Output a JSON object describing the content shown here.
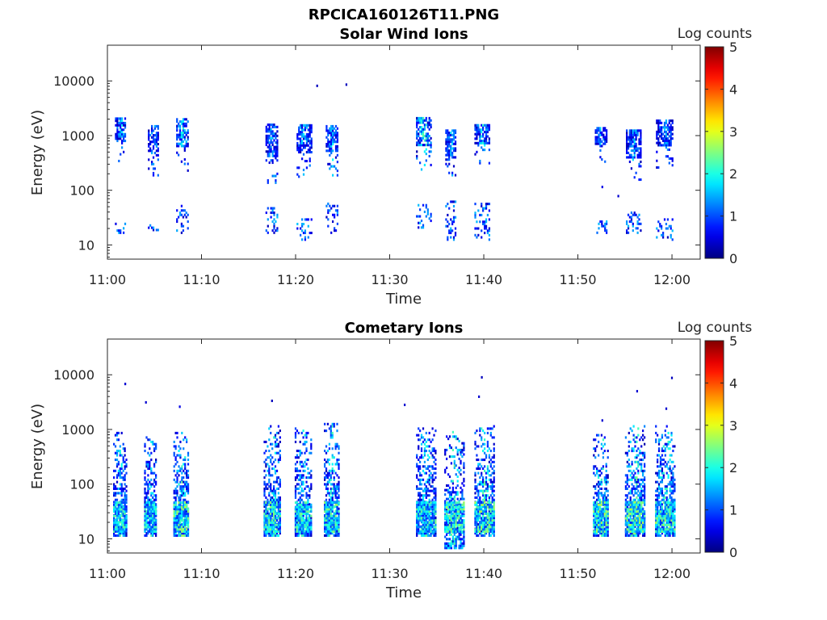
{
  "figure": {
    "title": "RPCICA160126T11.PNG"
  },
  "colorbar": {
    "label": "Log counts",
    "ticks": [
      0,
      1,
      2,
      3,
      4,
      5
    ],
    "range": [
      0,
      5
    ],
    "colormap": "jet"
  },
  "chart_data": [
    {
      "type": "heatmap",
      "title": "Solar Wind Ions",
      "xlabel": "Time",
      "ylabel": "Energy (eV)",
      "x_tick_labels": [
        "11:00",
        "11:10",
        "11:20",
        "11:30",
        "11:40",
        "11:50",
        "12:00"
      ],
      "x_tick_minutes": [
        0,
        10,
        20,
        30,
        40,
        50,
        60
      ],
      "xlim_minutes": [
        0,
        63
      ],
      "y_scale": "log",
      "y_tick_labels": [
        "10",
        "100",
        "1000",
        "10000"
      ],
      "y_tick_values": [
        10,
        100,
        1000,
        10000
      ],
      "ylim": [
        5.5,
        45000
      ],
      "color_range": [
        0,
        5
      ],
      "bursts": [
        {
          "t_min": 0.8,
          "t_max": 1.9,
          "e_main": [
            300,
            2000
          ],
          "e_low": [
            16,
            27
          ],
          "peak_log_counts": 2.2
        },
        {
          "t_min": 4.3,
          "t_max": 5.4,
          "e_main": [
            180,
            1500
          ],
          "e_low": [
            18,
            22
          ],
          "peak_log_counts": 2.0
        },
        {
          "t_min": 7.3,
          "t_max": 8.6,
          "e_main": [
            200,
            2000
          ],
          "e_low": [
            16,
            50
          ],
          "peak_log_counts": 2.3
        },
        {
          "t_min": 16.8,
          "t_max": 18.0,
          "e_main": [
            120,
            1600
          ],
          "e_low": [
            16,
            45
          ],
          "peak_log_counts": 2.0
        },
        {
          "t_min": 20.1,
          "t_max": 21.6,
          "e_main": [
            170,
            1600
          ],
          "e_low": [
            12,
            30
          ],
          "peak_log_counts": 2.1
        },
        {
          "t_min": 23.2,
          "t_max": 24.4,
          "e_main": [
            180,
            1500
          ],
          "e_low": [
            16,
            60
          ],
          "peak_log_counts": 2.0
        },
        {
          "t_min": 32.8,
          "t_max": 34.4,
          "e_main": [
            230,
            2100
          ],
          "e_low": [
            20,
            55
          ],
          "peak_log_counts": 2.6
        },
        {
          "t_min": 35.9,
          "t_max": 37.0,
          "e_main": [
            150,
            1200
          ],
          "e_low": [
            12,
            60
          ],
          "peak_log_counts": 2.0
        },
        {
          "t_min": 39.0,
          "t_max": 40.6,
          "e_main": [
            300,
            1600
          ],
          "e_low": [
            12,
            55
          ],
          "peak_log_counts": 2.2
        },
        {
          "t_min": 51.8,
          "t_max": 53.0,
          "e_main": [
            320,
            1400
          ],
          "e_low": [
            16,
            27
          ],
          "peak_log_counts": 1.9
        },
        {
          "t_min": 55.1,
          "t_max": 56.7,
          "e_main": [
            150,
            1200
          ],
          "e_low": [
            16,
            38
          ],
          "peak_log_counts": 1.9
        },
        {
          "t_min": 58.3,
          "t_max": 60.0,
          "e_main": [
            250,
            1900
          ],
          "e_low": [
            12,
            30
          ],
          "peak_log_counts": 1.8
        }
      ],
      "isolated_points": [
        {
          "t_min": 22.2,
          "e": 7800,
          "log_counts": 0.3
        },
        {
          "t_min": 25.3,
          "e": 8200,
          "log_counts": 0.3
        },
        {
          "t_min": 54.2,
          "e": 75,
          "log_counts": 0.4
        },
        {
          "t_min": 52.5,
          "e": 110,
          "log_counts": 0.5
        }
      ]
    },
    {
      "type": "heatmap",
      "title": "Cometary Ions",
      "xlabel": "Time",
      "ylabel": "Energy (eV)",
      "x_tick_labels": [
        "11:00",
        "11:10",
        "11:20",
        "11:30",
        "11:40",
        "11:50",
        "12:00"
      ],
      "x_tick_minutes": [
        0,
        10,
        20,
        30,
        40,
        50,
        60
      ],
      "xlim_minutes": [
        0,
        63
      ],
      "y_scale": "log",
      "y_tick_labels": [
        "10",
        "100",
        "1000",
        "10000"
      ],
      "y_tick_values": [
        10,
        100,
        1000,
        10000
      ],
      "ylim": [
        5.5,
        45000
      ],
      "color_range": [
        0,
        5
      ],
      "bursts": [
        {
          "t_min": 0.6,
          "t_max": 2.0,
          "e_main": [
            11,
            900
          ],
          "e_band": [
            13,
            45
          ],
          "peak_log_counts": 2.2
        },
        {
          "t_min": 3.9,
          "t_max": 5.2,
          "e_main": [
            11,
            700
          ],
          "e_band": [
            13,
            45
          ],
          "peak_log_counts": 2.1
        },
        {
          "t_min": 7.0,
          "t_max": 8.6,
          "e_main": [
            11,
            900
          ],
          "e_band": [
            13,
            45
          ],
          "peak_log_counts": 2.7
        },
        {
          "t_min": 16.6,
          "t_max": 18.4,
          "e_main": [
            11,
            1200
          ],
          "e_band": [
            13,
            45
          ],
          "peak_log_counts": 2.4
        },
        {
          "t_min": 19.9,
          "t_max": 21.7,
          "e_main": [
            11,
            1000
          ],
          "e_band": [
            13,
            45
          ],
          "peak_log_counts": 2.3
        },
        {
          "t_min": 23.0,
          "t_max": 24.6,
          "e_main": [
            11,
            1400
          ],
          "e_band": [
            13,
            45
          ],
          "peak_log_counts": 2.5
        },
        {
          "t_min": 32.8,
          "t_max": 34.8,
          "e_main": [
            11,
            1000
          ],
          "e_band": [
            13,
            45
          ],
          "peak_log_counts": 2.3
        },
        {
          "t_min": 35.8,
          "t_max": 37.8,
          "e_main": [
            6.5,
            900
          ],
          "e_band": [
            13,
            45
          ],
          "peak_log_counts": 2.5
        },
        {
          "t_min": 39.0,
          "t_max": 41.0,
          "e_main": [
            11,
            1100
          ],
          "e_band": [
            13,
            45
          ],
          "peak_log_counts": 2.6
        },
        {
          "t_min": 51.6,
          "t_max": 53.2,
          "e_main": [
            11,
            800
          ],
          "e_band": [
            13,
            45
          ],
          "peak_log_counts": 2.6
        },
        {
          "t_min": 55.0,
          "t_max": 57.0,
          "e_main": [
            11,
            1100
          ],
          "e_band": [
            13,
            45
          ],
          "peak_log_counts": 2.7
        },
        {
          "t_min": 58.2,
          "t_max": 60.3,
          "e_main": [
            11,
            1100
          ],
          "e_band": [
            13,
            45
          ],
          "peak_log_counts": 2.6
        }
      ],
      "isolated_points": [
        {
          "t_min": 1.8,
          "e": 6500,
          "log_counts": 0.4
        },
        {
          "t_min": 4.0,
          "e": 3000,
          "log_counts": 0.4
        },
        {
          "t_min": 7.6,
          "e": 2500,
          "log_counts": 0.5
        },
        {
          "t_min": 17.4,
          "e": 3200,
          "log_counts": 0.3
        },
        {
          "t_min": 31.5,
          "e": 2700,
          "log_counts": 0.4
        },
        {
          "t_min": 39.7,
          "e": 8600,
          "log_counts": 0.3
        },
        {
          "t_min": 39.4,
          "e": 3800,
          "log_counts": 0.4
        },
        {
          "t_min": 56.2,
          "e": 4800,
          "log_counts": 0.4
        },
        {
          "t_min": 59.9,
          "e": 8400,
          "log_counts": 0.3
        },
        {
          "t_min": 59.3,
          "e": 2300,
          "log_counts": 0.4
        },
        {
          "t_min": 52.5,
          "e": 1400,
          "log_counts": 0.4
        }
      ]
    }
  ]
}
